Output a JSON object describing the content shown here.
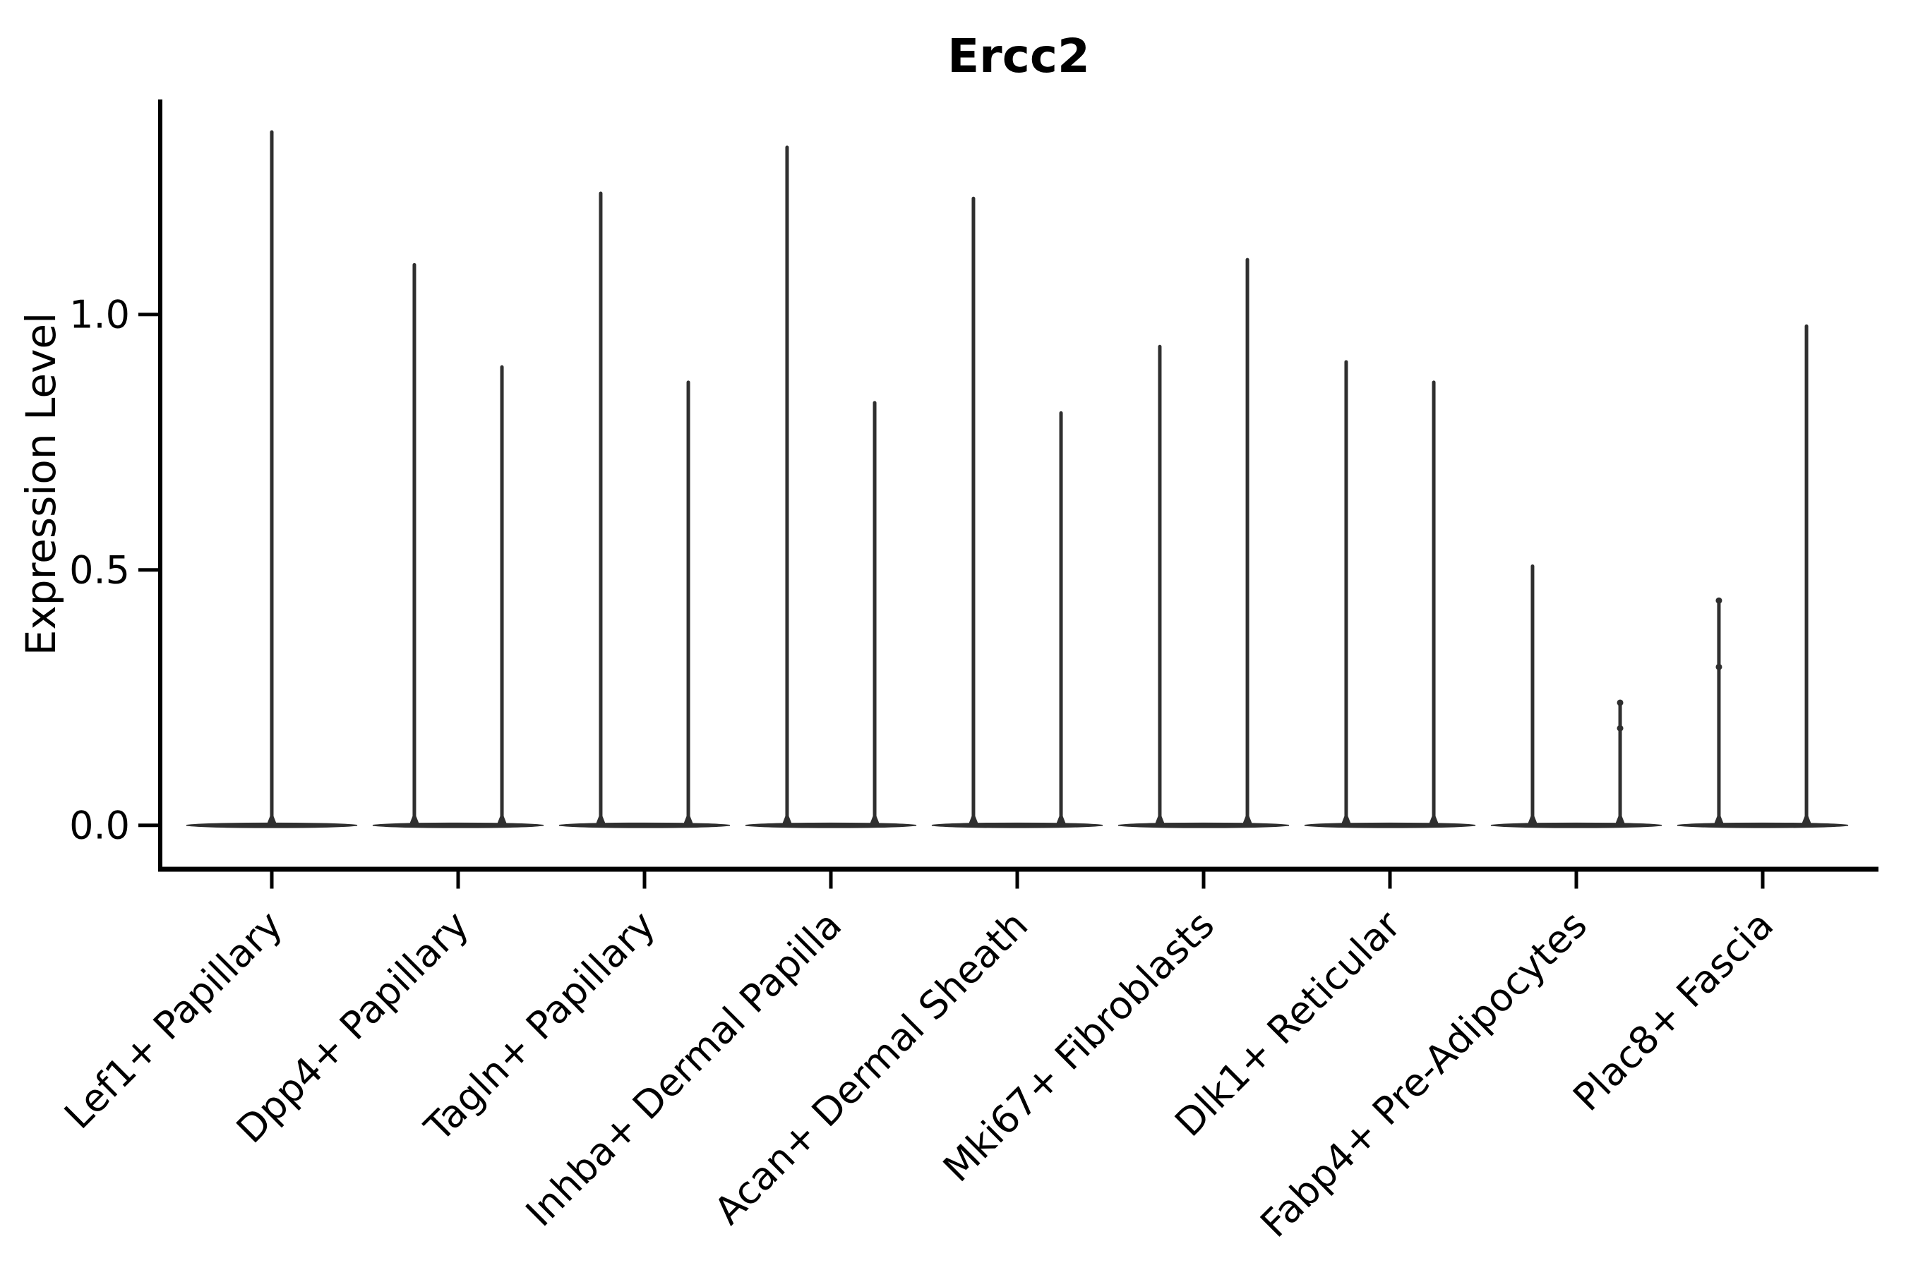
{
  "chart_data": {
    "type": "violin",
    "title": "Ercc2",
    "xlabel": "",
    "ylabel": "Expression Level",
    "ylim": [
      -0.086,
      1.421
    ],
    "grid": false,
    "legend": "none",
    "y_ticks": [
      {
        "value": 0.0,
        "label": "0.0"
      },
      {
        "value": 0.5,
        "label": "0.5"
      },
      {
        "value": 1.0,
        "label": "1.0"
      }
    ],
    "categories": [
      "Lef1+ Papillary",
      "Dpp4+ Papillary",
      "Tagln+ Papillary",
      "Inhba+ Dermal Papilla",
      "Acan+ Dermal Sheath",
      "Mki67+ Fibroblasts",
      "Dlk1+ Reticular",
      "Fabp4+ Pre-Adipocytes",
      "Plac8+ Fascia"
    ],
    "violins": [
      {
        "category": "Lef1+ Papillary",
        "spikes": [
          {
            "offset": 0,
            "max": 1.36
          }
        ]
      },
      {
        "category": "Dpp4+ Papillary",
        "spikes": [
          {
            "offset": -0.235,
            "max": 1.1
          },
          {
            "offset": 0.235,
            "max": 0.9
          }
        ]
      },
      {
        "category": "Tagln+ Papillary",
        "spikes": [
          {
            "offset": -0.235,
            "max": 1.24
          },
          {
            "offset": 0.235,
            "max": 0.87
          }
        ]
      },
      {
        "category": "Inhba+ Dermal Papilla",
        "spikes": [
          {
            "offset": -0.235,
            "max": 1.33
          },
          {
            "offset": 0.235,
            "max": 0.83
          }
        ]
      },
      {
        "category": "Acan+ Dermal Sheath",
        "spikes": [
          {
            "offset": -0.235,
            "max": 1.23
          },
          {
            "offset": 0.235,
            "max": 0.81
          }
        ]
      },
      {
        "category": "Mki67+ Fibroblasts",
        "spikes": [
          {
            "offset": -0.235,
            "max": 0.94
          },
          {
            "offset": 0.235,
            "max": 1.11
          }
        ]
      },
      {
        "category": "Dlk1+ Reticular",
        "spikes": [
          {
            "offset": -0.235,
            "max": 0.91
          },
          {
            "offset": 0.235,
            "max": 0.87
          }
        ]
      },
      {
        "category": "Fabp4+ Pre-Adipocytes",
        "spikes": [
          {
            "offset": -0.235,
            "max": 0.51
          },
          {
            "offset": 0.235,
            "max": 0.24,
            "dots": [
              0.24,
              0.19
            ]
          }
        ]
      },
      {
        "category": "Plac8+ Fascia",
        "spikes": [
          {
            "offset": -0.235,
            "max": 0.44,
            "dots": [
              0.44,
              0.31
            ]
          },
          {
            "offset": 0.235,
            "max": 0.98
          }
        ]
      }
    ],
    "colors": {
      "violin_stroke": "#2f2f2f",
      "axis": "#000000",
      "text": "#000000",
      "background": "#ffffff"
    }
  }
}
